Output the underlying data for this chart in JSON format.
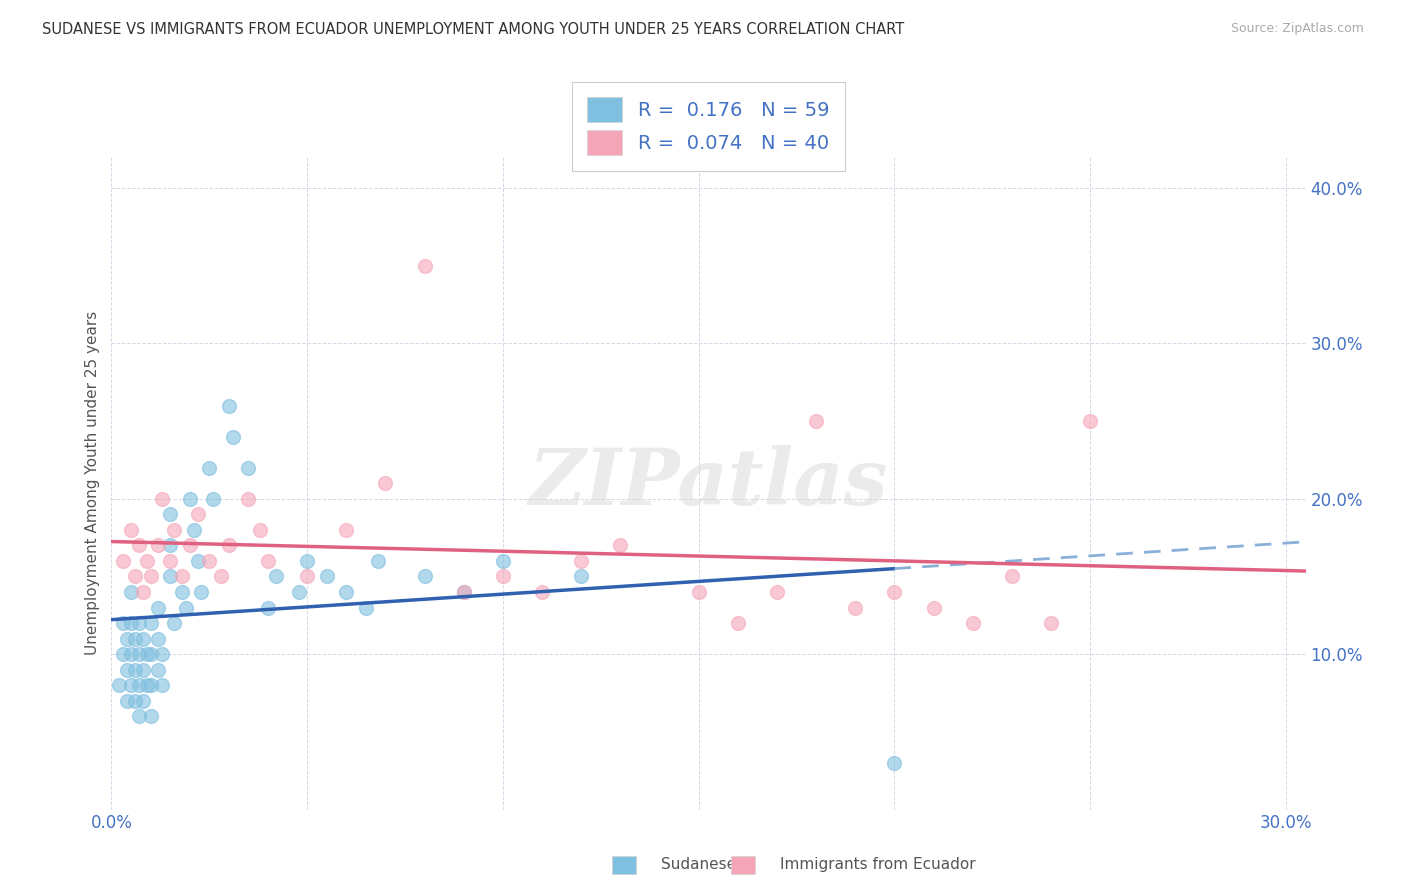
{
  "title": "SUDANESE VS IMMIGRANTS FROM ECUADOR UNEMPLOYMENT AMONG YOUTH UNDER 25 YEARS CORRELATION CHART",
  "source": "Source: ZipAtlas.com",
  "ylabel_label": "Unemployment Among Youth under 25 years",
  "xlim": [
    0.0,
    0.305
  ],
  "ylim": [
    0.0,
    0.42
  ],
  "xticks": [
    0.0,
    0.05,
    0.1,
    0.15,
    0.2,
    0.25,
    0.3
  ],
  "yticks": [
    0.0,
    0.1,
    0.2,
    0.3,
    0.4
  ],
  "blue_color": "#7fbfdf",
  "pink_color": "#f4a5b8",
  "blue_line_color": "#3060b0",
  "pink_line_color": "#e06080",
  "legend_blue_R": "0.176",
  "legend_blue_N": "59",
  "legend_pink_R": "0.074",
  "legend_pink_N": "40",
  "watermark": "ZIPatlas",
  "blue_line_solid_end": 0.2,
  "blue_line_dashed_end": 0.305,
  "sudanese_x": [
    0.002,
    0.003,
    0.003,
    0.004,
    0.004,
    0.004,
    0.005,
    0.005,
    0.005,
    0.005,
    0.006,
    0.006,
    0.006,
    0.007,
    0.007,
    0.007,
    0.007,
    0.008,
    0.008,
    0.008,
    0.009,
    0.009,
    0.01,
    0.01,
    0.01,
    0.01,
    0.012,
    0.012,
    0.012,
    0.013,
    0.013,
    0.015,
    0.015,
    0.015,
    0.016,
    0.018,
    0.019,
    0.02,
    0.021,
    0.022,
    0.023,
    0.025,
    0.026,
    0.03,
    0.031,
    0.035,
    0.04,
    0.042,
    0.048,
    0.05,
    0.055,
    0.06,
    0.065,
    0.068,
    0.08,
    0.09,
    0.1,
    0.12,
    0.2
  ],
  "sudanese_y": [
    0.08,
    0.1,
    0.12,
    0.07,
    0.09,
    0.11,
    0.08,
    0.1,
    0.12,
    0.14,
    0.07,
    0.09,
    0.11,
    0.06,
    0.08,
    0.1,
    0.12,
    0.07,
    0.09,
    0.11,
    0.08,
    0.1,
    0.06,
    0.08,
    0.1,
    0.12,
    0.09,
    0.11,
    0.13,
    0.08,
    0.1,
    0.15,
    0.17,
    0.19,
    0.12,
    0.14,
    0.13,
    0.2,
    0.18,
    0.16,
    0.14,
    0.22,
    0.2,
    0.26,
    0.24,
    0.22,
    0.13,
    0.15,
    0.14,
    0.16,
    0.15,
    0.14,
    0.13,
    0.16,
    0.15,
    0.14,
    0.16,
    0.15,
    0.03
  ],
  "ecuador_x": [
    0.003,
    0.005,
    0.006,
    0.007,
    0.008,
    0.009,
    0.01,
    0.012,
    0.013,
    0.015,
    0.016,
    0.018,
    0.02,
    0.022,
    0.025,
    0.028,
    0.03,
    0.035,
    0.038,
    0.04,
    0.05,
    0.06,
    0.07,
    0.08,
    0.09,
    0.1,
    0.11,
    0.12,
    0.13,
    0.15,
    0.16,
    0.17,
    0.18,
    0.19,
    0.2,
    0.21,
    0.22,
    0.23,
    0.24,
    0.25
  ],
  "ecuador_y": [
    0.16,
    0.18,
    0.15,
    0.17,
    0.14,
    0.16,
    0.15,
    0.17,
    0.2,
    0.16,
    0.18,
    0.15,
    0.17,
    0.19,
    0.16,
    0.15,
    0.17,
    0.2,
    0.18,
    0.16,
    0.15,
    0.18,
    0.21,
    0.35,
    0.14,
    0.15,
    0.14,
    0.16,
    0.17,
    0.14,
    0.12,
    0.14,
    0.25,
    0.13,
    0.14,
    0.13,
    0.12,
    0.15,
    0.12,
    0.25
  ]
}
